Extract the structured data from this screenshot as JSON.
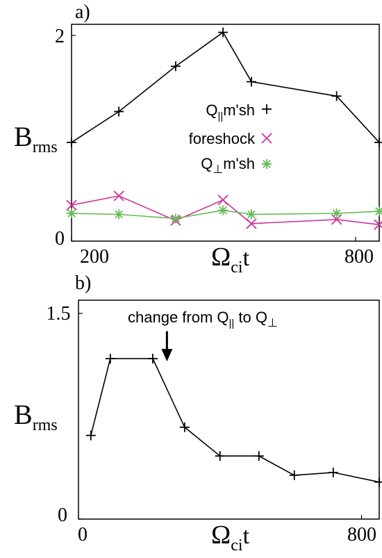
{
  "chart_data": [
    {
      "panel_label": "a)",
      "type": "line",
      "xlabel_main": "Ω",
      "xlabel_sub": "ci",
      "xlabel_tail": "t",
      "ylabel_main": "B",
      "ylabel_sub": "rms",
      "xlim": [
        200,
        850
      ],
      "ylim": [
        0,
        2
      ],
      "xtick_labels": [
        "200",
        "800"
      ],
      "ytick_labels": [
        "0",
        "2"
      ],
      "xticks": [
        200,
        800
      ],
      "yticks": [
        0,
        2
      ],
      "grid": false,
      "legend_position": "center",
      "series": [
        {
          "name": "Q||m'sh",
          "name_main": "Q",
          "name_sub": "||",
          "name_tail": "m'sh",
          "color": "#000000",
          "marker": "plus",
          "x": [
            200,
            300,
            420,
            520,
            580,
            760,
            850
          ],
          "y": [
            0.96,
            1.26,
            1.7,
            2.03,
            1.55,
            1.41,
            0.96
          ]
        },
        {
          "name": "foreshock",
          "name_main": "foreshock",
          "name_sub": "",
          "name_tail": "",
          "color": "#cc3399",
          "marker": "x",
          "x": [
            200,
            300,
            420,
            520,
            580,
            760,
            850
          ],
          "y": [
            0.35,
            0.44,
            0.2,
            0.4,
            0.17,
            0.21,
            0.16
          ]
        },
        {
          "name": "Q⊥m'sh",
          "name_main": "Q",
          "name_sub": "⊥",
          "name_tail": "m'sh",
          "color": "#66bb55",
          "marker": "asterisk",
          "x": [
            200,
            300,
            420,
            520,
            580,
            760,
            850
          ],
          "y": [
            0.27,
            0.26,
            0.22,
            0.3,
            0.26,
            0.27,
            0.29
          ]
        }
      ]
    },
    {
      "panel_label": "b)",
      "type": "line",
      "xlabel_main": "Ω",
      "xlabel_sub": "ci",
      "xlabel_tail": "t",
      "ylabel_main": "B",
      "ylabel_sub": "rms",
      "xlim": [
        0,
        850
      ],
      "ylim": [
        0,
        1.5
      ],
      "xtick_labels": [
        "0",
        "800"
      ],
      "ytick_labels": [
        "0",
        "1.5"
      ],
      "xticks": [
        0,
        800
      ],
      "yticks": [
        0,
        1.5
      ],
      "grid": false,
      "annotation": {
        "text_main": "change from Q",
        "text_sub1": "||",
        "text_mid": " to Q",
        "text_sub2": "⊥",
        "arrow_x": 250,
        "arrow_y_top": 1.37,
        "arrow_y_bottom": 1.15
      },
      "series": [
        {
          "name": "",
          "color": "#000000",
          "marker": "plus",
          "x": [
            35,
            90,
            210,
            300,
            400,
            510,
            610,
            720,
            850
          ],
          "y": [
            0.61,
            1.17,
            1.17,
            0.67,
            0.46,
            0.46,
            0.32,
            0.34,
            0.27
          ]
        }
      ]
    }
  ]
}
